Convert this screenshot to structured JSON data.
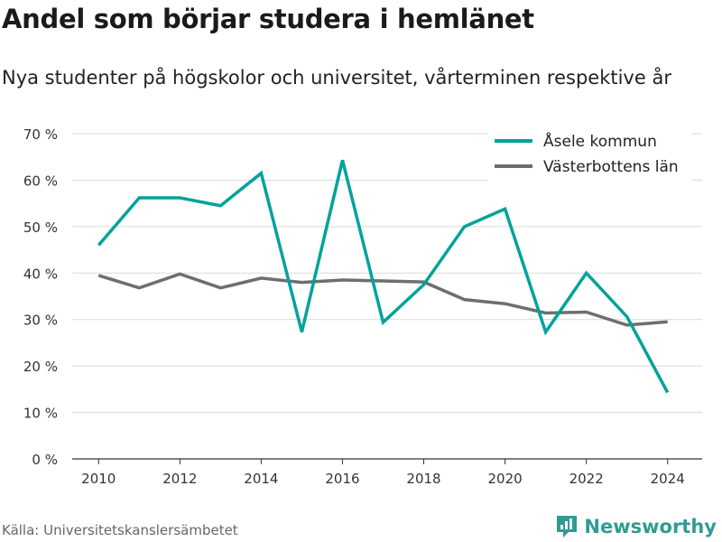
{
  "title": "Andel som börjar studera i hemlänet",
  "subtitle": "Nya studenter på högskolor och universitet, vårterminen respektive år",
  "source": "Källa: Universitetskanslersämbetet",
  "brand": {
    "name": "Newsworthy",
    "icon": "newsworthy-logo-icon",
    "color": "#2f9c94"
  },
  "chart_data": {
    "type": "line",
    "x": [
      2010,
      2011,
      2012,
      2013,
      2014,
      2015,
      2016,
      2017,
      2018,
      2019,
      2020,
      2021,
      2022,
      2023,
      2024
    ],
    "series": [
      {
        "name": "Åsele kommun",
        "color": "#00a39a",
        "values": [
          46,
          56.2,
          56.2,
          54.5,
          61.5,
          27.3,
          64.3,
          29.4,
          37.5,
          50,
          53.8,
          27.3,
          40,
          30.6,
          14.3
        ]
      },
      {
        "name": "Västerbottens län",
        "color": "#6e6d72",
        "values": [
          39.5,
          36.8,
          39.8,
          36.8,
          38.9,
          38,
          38.5,
          38.3,
          38.1,
          34.3,
          33.4,
          31.4,
          31.6,
          28.8,
          29.5
        ]
      }
    ],
    "ylim": [
      0,
      70
    ],
    "yticks": [
      0,
      10,
      20,
      30,
      40,
      50,
      60,
      70
    ],
    "ytick_labels": [
      "0 %",
      "10 %",
      "20 %",
      "30 %",
      "40 %",
      "50 %",
      "60 %",
      "70 %"
    ],
    "xticks": [
      2010,
      2012,
      2014,
      2016,
      2018,
      2020,
      2022,
      2024
    ],
    "xtick_labels": [
      "2010",
      "2012",
      "2014",
      "2016",
      "2018",
      "2020",
      "2022",
      "2024"
    ],
    "xlabel": "",
    "ylabel": "",
    "grid": true,
    "legend_position": "top-right"
  }
}
